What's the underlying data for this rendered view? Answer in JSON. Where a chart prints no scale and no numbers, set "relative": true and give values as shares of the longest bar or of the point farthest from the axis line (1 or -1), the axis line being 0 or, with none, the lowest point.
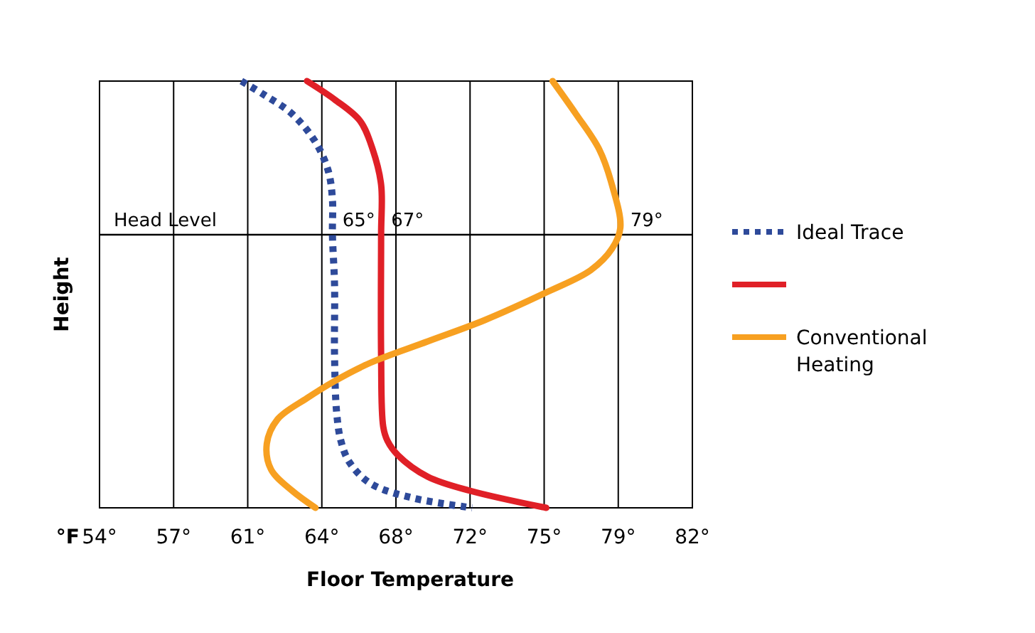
{
  "chart_data": {
    "type": "line",
    "relative": true,
    "xlabel": "Floor Temperature",
    "ylabel": "Height",
    "xlim": [
      54,
      82
    ],
    "xticks": [
      {
        "value": 54,
        "label": "54°"
      },
      {
        "value": 57.5,
        "label": "57°"
      },
      {
        "value": 61,
        "label": "61°"
      },
      {
        "value": 64.5,
        "label": "64°"
      },
      {
        "value": 68,
        "label": "68°"
      },
      {
        "value": 71.5,
        "label": "72°"
      },
      {
        "value": 75,
        "label": "75°"
      },
      {
        "value": 78.5,
        "label": "79°"
      },
      {
        "value": 82,
        "label": "82°"
      }
    ],
    "grid": "x",
    "legend": "right",
    "ref_lines": [
      {
        "axis": "y",
        "value": 0.64,
        "label": "Head Level",
        "color": "#000000"
      }
    ],
    "annotations": [
      "°F",
      {
        "text": "65°",
        "x": 65.0,
        "y": 0.64
      },
      {
        "text": "67°",
        "x": 67.3,
        "y": 0.64
      },
      {
        "text": "79°",
        "x": 78.6,
        "y": 0.64
      }
    ],
    "series": [
      {
        "name": "Ideal Trace",
        "color": "#2e4a9a",
        "line_style": "dotted",
        "x": [
          60.7,
          61.8,
          63.1,
          64.2,
          64.8,
          65.0,
          65.0,
          65.1,
          65.1,
          65.2,
          65.4,
          65.8,
          66.8,
          68.8,
          71.6
        ],
        "values": [
          1,
          0.967,
          0.923,
          0.857,
          0.79,
          0.723,
          0.64,
          0.523,
          0.357,
          0.223,
          0.157,
          0.107,
          0.057,
          0.023,
          0
        ]
      },
      {
        "color": "#e02027",
        "line_style": "solid",
        "x": [
          63.8,
          65.1,
          66.3,
          66.9,
          67.3,
          67.3,
          67.3,
          67.4,
          67.6,
          68.1,
          69.5,
          71.5,
          75.1
        ],
        "values": [
          1,
          0.957,
          0.907,
          0.84,
          0.757,
          0.64,
          0.357,
          0.19,
          0.157,
          0.123,
          0.073,
          0.04,
          0
        ]
      },
      {
        "name": "Conventional Heating",
        "color": "#f7a021",
        "line_style": "solid",
        "x": [
          75.4,
          76.5,
          77.6,
          78.2,
          78.6,
          78.2,
          77.2,
          75.2,
          72.2,
          69.5,
          66.8,
          65.1,
          63.8,
          62.4,
          61.9,
          62.1,
          63.1,
          64.2
        ],
        "values": [
          1,
          0.923,
          0.84,
          0.757,
          0.657,
          0.607,
          0.557,
          0.507,
          0.44,
          0.39,
          0.34,
          0.297,
          0.257,
          0.207,
          0.15,
          0.09,
          0.04,
          0
        ]
      }
    ]
  }
}
